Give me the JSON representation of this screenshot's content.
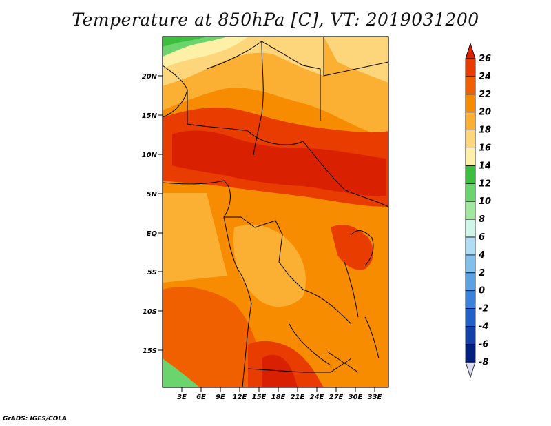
{
  "title": "Temperature at 850hPa [C], VT: 2019031200",
  "credit": "GrADS: IGES/COLA",
  "map": {
    "lat_labels": [
      "20N",
      "15N",
      "10N",
      "5N",
      "EQ",
      "5S",
      "10S",
      "15S"
    ],
    "lon_labels": [
      "3E",
      "6E",
      "9E",
      "12E",
      "15E",
      "18E",
      "21E",
      "24E",
      "27E",
      "30E",
      "33E"
    ]
  },
  "colorbar": {
    "levels": [
      "26",
      "24",
      "22",
      "20",
      "18",
      "16",
      "14",
      "12",
      "10",
      "8",
      "6",
      "4",
      "2",
      "0",
      "-2",
      "-4",
      "-6",
      "-8"
    ],
    "colors": [
      "#d92000",
      "#e83c00",
      "#f06000",
      "#f78c00",
      "#fbb034",
      "#fdd57a",
      "#fff0a8",
      "#3cbf3c",
      "#6cd46c",
      "#a0e8a0",
      "#cff5e8",
      "#b0dcf4",
      "#82c0ec",
      "#5aa2e4",
      "#3a82dc",
      "#2060c8",
      "#1040a8",
      "#002080",
      "#0a0a6e"
    ]
  }
}
